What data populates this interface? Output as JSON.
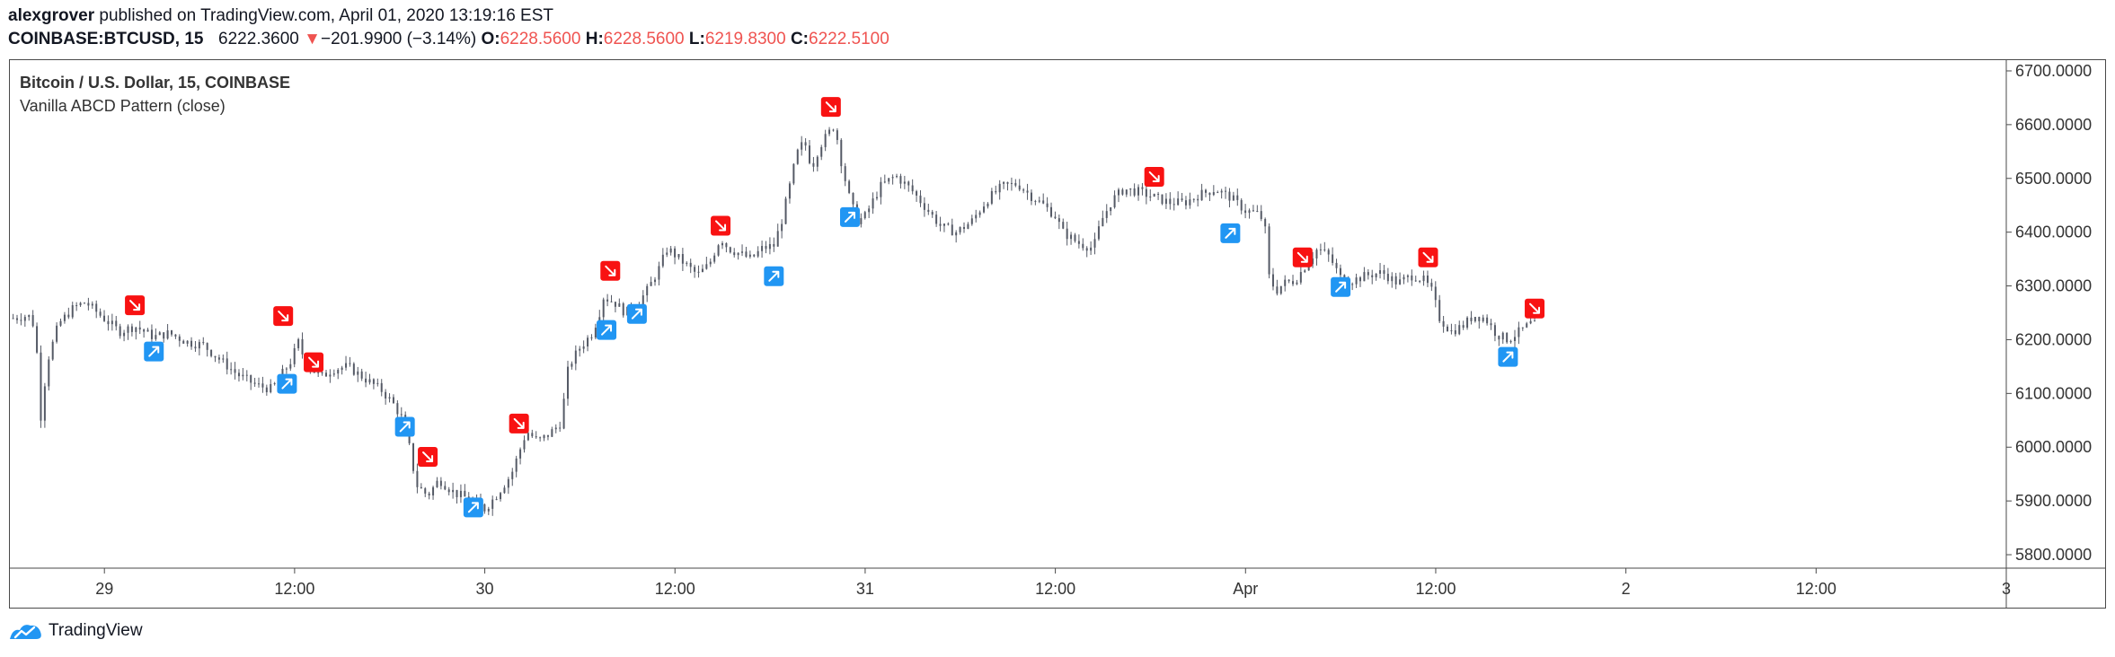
{
  "header": {
    "author": "alexgrover",
    "published_text": "published on TradingView.com, April 01, 2020 13:19:16 EST",
    "symbol": "COINBASE:BTCUSD, 15",
    "last_price": "6222.3600",
    "change_arrow": "▼",
    "change": "−201.9900 (−3.14%)",
    "open_label": "O:",
    "open": "6228.5600",
    "high_label": "H:",
    "high": "6228.5600",
    "low_label": "L:",
    "low": "6219.8300",
    "close_label": "C:",
    "close": "6222.5100"
  },
  "legend": {
    "title": "Bitcoin / U.S. Dollar, 15, COINBASE",
    "indicator": "Vanilla ABCD Pattern (close)"
  },
  "footer": {
    "brand": "TradingView",
    "logo_icon": "tradingview-logo-icon"
  },
  "colors": {
    "candle": "#555a66",
    "bull_marker": "#2196f3",
    "bear_marker": "#f81212",
    "down_text": "#ef5350",
    "axis_text": "#333333"
  },
  "chart_data": {
    "type": "candlestick",
    "y_ticks": [
      "6700.0000",
      "6600.0000",
      "6500.0000",
      "6400.0000",
      "6300.0000",
      "6200.0000",
      "6100.0000",
      "6000.0000",
      "5900.0000",
      "5800.0000"
    ],
    "ylim": [
      5775,
      6720
    ],
    "x_ticks": [
      "29",
      "12:00",
      "30",
      "12:00",
      "31",
      "12:00",
      "Apr",
      "12:00",
      "2",
      "12:00",
      "3"
    ],
    "x_tick_days": [
      1,
      1.5,
      2,
      2.5,
      3,
      3.5,
      4,
      4.5,
      5,
      5.5,
      6
    ],
    "xlim": [
      0.7515,
      6.0
    ],
    "price_path": [
      [
        0.76,
        6240
      ],
      [
        0.8,
        6245
      ],
      [
        0.82,
        6220
      ],
      [
        0.83,
        6040
      ],
      [
        0.85,
        6160
      ],
      [
        0.88,
        6230
      ],
      [
        0.92,
        6260
      ],
      [
        0.95,
        6270
      ],
      [
        0.99,
        6245
      ],
      [
        1.04,
        6215
      ],
      [
        1.08,
        6225
      ],
      [
        1.13,
        6205
      ],
      [
        1.17,
        6212
      ],
      [
        1.22,
        6195
      ],
      [
        1.26,
        6190
      ],
      [
        1.3,
        6165
      ],
      [
        1.35,
        6135
      ],
      [
        1.4,
        6115
      ],
      [
        1.44,
        6108
      ],
      [
        1.49,
        6160
      ],
      [
        1.51,
        6195
      ],
      [
        1.53,
        6155
      ],
      [
        1.57,
        6130
      ],
      [
        1.6,
        6145
      ],
      [
        1.64,
        6150
      ],
      [
        1.68,
        6130
      ],
      [
        1.73,
        6105
      ],
      [
        1.76,
        6080
      ],
      [
        1.79,
        6045
      ],
      [
        1.82,
        5930
      ],
      [
        1.85,
        5910
      ],
      [
        1.88,
        5940
      ],
      [
        1.92,
        5915
      ],
      [
        1.97,
        5900
      ],
      [
        2.0,
        5885
      ],
      [
        2.03,
        5910
      ],
      [
        2.07,
        5950
      ],
      [
        2.09,
        5990
      ],
      [
        2.11,
        6030
      ],
      [
        2.14,
        6010
      ],
      [
        2.17,
        6025
      ],
      [
        2.2,
        6045
      ],
      [
        2.22,
        6150
      ],
      [
        2.25,
        6185
      ],
      [
        2.28,
        6210
      ],
      [
        2.3,
        6245
      ],
      [
        2.31,
        6280
      ],
      [
        2.34,
        6270
      ],
      [
        2.37,
        6250
      ],
      [
        2.4,
        6265
      ],
      [
        2.43,
        6295
      ],
      [
        2.46,
        6335
      ],
      [
        2.48,
        6370
      ],
      [
        2.52,
        6345
      ],
      [
        2.56,
        6320
      ],
      [
        2.59,
        6340
      ],
      [
        2.62,
        6390
      ],
      [
        2.64,
        6370
      ],
      [
        2.67,
        6360
      ],
      [
        2.7,
        6350
      ],
      [
        2.73,
        6370
      ],
      [
        2.76,
        6375
      ],
      [
        2.78,
        6420
      ],
      [
        2.8,
        6480
      ],
      [
        2.82,
        6545
      ],
      [
        2.84,
        6570
      ],
      [
        2.86,
        6520
      ],
      [
        2.88,
        6560
      ],
      [
        2.9,
        6580
      ],
      [
        2.92,
        6600
      ],
      [
        2.94,
        6520
      ],
      [
        2.96,
        6460
      ],
      [
        2.98,
        6420
      ],
      [
        3.0,
        6430
      ],
      [
        3.04,
        6485
      ],
      [
        3.08,
        6505
      ],
      [
        3.12,
        6480
      ],
      [
        3.16,
        6445
      ],
      [
        3.2,
        6410
      ],
      [
        3.24,
        6400
      ],
      [
        3.28,
        6420
      ],
      [
        3.32,
        6460
      ],
      [
        3.36,
        6485
      ],
      [
        3.4,
        6490
      ],
      [
        3.44,
        6465
      ],
      [
        3.47,
        6450
      ],
      [
        3.5,
        6430
      ],
      [
        3.52,
        6400
      ],
      [
        3.56,
        6380
      ],
      [
        3.6,
        6370
      ],
      [
        3.62,
        6420
      ],
      [
        3.65,
        6460
      ],
      [
        3.68,
        6480
      ],
      [
        3.72,
        6475
      ],
      [
        3.76,
        6465
      ],
      [
        3.8,
        6455
      ],
      [
        3.84,
        6455
      ],
      [
        3.88,
        6470
      ],
      [
        3.92,
        6480
      ],
      [
        3.96,
        6465
      ],
      [
        4.0,
        6440
      ],
      [
        4.03,
        6435
      ],
      [
        4.05,
        6420
      ],
      [
        4.06,
        6320
      ],
      [
        4.08,
        6290
      ],
      [
        4.1,
        6305
      ],
      [
        4.13,
        6310
      ],
      [
        4.16,
        6340
      ],
      [
        4.19,
        6370
      ],
      [
        4.22,
        6355
      ],
      [
        4.25,
        6315
      ],
      [
        4.28,
        6310
      ],
      [
        4.32,
        6320
      ],
      [
        4.36,
        6325
      ],
      [
        4.4,
        6305
      ],
      [
        4.44,
        6320
      ],
      [
        4.47,
        6310
      ],
      [
        4.49,
        6290
      ],
      [
        4.51,
        6240
      ],
      [
        4.54,
        6215
      ],
      [
        4.57,
        6225
      ],
      [
        4.6,
        6245
      ],
      [
        4.63,
        6240
      ],
      [
        4.66,
        6210
      ],
      [
        4.69,
        6200
      ],
      [
        4.72,
        6215
      ],
      [
        4.75,
        6230
      ],
      [
        4.77,
        6224
      ]
    ],
    "bull_markers": [
      [
        1.13,
        6178
      ],
      [
        1.48,
        6118
      ],
      [
        1.79,
        6038
      ],
      [
        1.97,
        5888
      ],
      [
        2.32,
        6218
      ],
      [
        2.4,
        6248
      ],
      [
        2.76,
        6318
      ],
      [
        2.96,
        6428
      ],
      [
        3.96,
        6398
      ],
      [
        4.25,
        6298
      ],
      [
        4.69,
        6168
      ]
    ],
    "bear_markers": [
      [
        1.08,
        6264
      ],
      [
        1.47,
        6244
      ],
      [
        1.55,
        6158
      ],
      [
        1.85,
        5982
      ],
      [
        2.09,
        6044
      ],
      [
        2.33,
        6328
      ],
      [
        2.62,
        6412
      ],
      [
        2.91,
        6633
      ],
      [
        3.76,
        6503
      ],
      [
        4.15,
        6353
      ],
      [
        4.48,
        6353
      ],
      [
        4.76,
        6258
      ]
    ]
  }
}
